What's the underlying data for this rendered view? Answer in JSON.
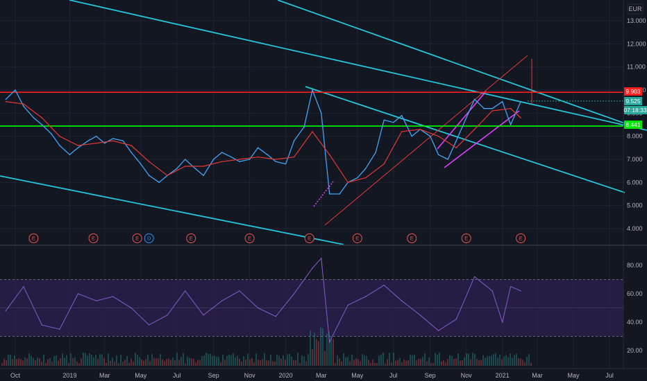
{
  "chart_data": [
    {
      "type": "line",
      "panel": "price",
      "currency": "EUR",
      "x_tick_labels": [
        "Oct",
        "2019",
        "Mar",
        "May",
        "Jul",
        "Sep",
        "Nov",
        "2020",
        "Mar",
        "May",
        "Jul",
        "Sep",
        "Nov",
        "2021",
        "Mar",
        "May",
        "Jul"
      ],
      "x_tick_dates": [
        "2018-10",
        "2019-01",
        "2019-03",
        "2019-05",
        "2019-07",
        "2019-09",
        "2019-11",
        "2020-01",
        "2020-03",
        "2020-05",
        "2020-07",
        "2020-09",
        "2020-11",
        "2021-01",
        "2021-03",
        "2021-05",
        "2021-07"
      ],
      "y_tick_labels": [
        "13.000",
        "12.000",
        "11.000",
        "10.000",
        "9.000",
        "8.000",
        "7.000",
        "6.000",
        "5.000",
        "4.000"
      ],
      "ylim": [
        3.4,
        13.6
      ],
      "grid": true,
      "series": [
        {
          "color": "#42a5f5",
          "x": [
            "2018-09-15",
            "2018-10-01",
            "2018-10-15",
            "2018-11-01",
            "2018-11-15",
            "2018-12-01",
            "2018-12-15",
            "2019-01-01",
            "2019-01-15",
            "2019-02-01",
            "2019-02-15",
            "2019-03-01",
            "2019-03-15",
            "2019-04-01",
            "2019-04-15",
            "2019-05-01",
            "2019-05-15",
            "2019-06-01",
            "2019-06-15",
            "2019-07-01",
            "2019-07-15",
            "2019-08-01",
            "2019-08-15",
            "2019-09-01",
            "2019-09-15",
            "2019-10-01",
            "2019-10-15",
            "2019-11-01",
            "2019-11-15",
            "2019-12-01",
            "2019-12-15",
            "2020-01-01",
            "2020-01-15",
            "2020-02-01",
            "2020-02-15",
            "2020-03-01",
            "2020-03-15",
            "2020-04-01",
            "2020-04-15",
            "2020-05-01",
            "2020-05-15",
            "2020-06-01",
            "2020-06-15",
            "2020-07-01",
            "2020-07-15",
            "2020-08-01",
            "2020-08-15",
            "2020-09-01",
            "2020-09-15",
            "2020-10-01",
            "2020-10-15",
            "2020-11-01",
            "2020-11-15",
            "2020-12-01",
            "2020-12-15",
            "2021-01-01",
            "2021-01-15",
            "2021-02-01"
          ],
          "values": [
            9.6,
            10.0,
            9.3,
            8.8,
            8.5,
            8.1,
            7.6,
            7.2,
            7.5,
            7.8,
            8.0,
            7.7,
            7.9,
            7.8,
            7.3,
            6.8,
            6.3,
            6.0,
            6.3,
            6.6,
            7.0,
            6.6,
            6.3,
            7.0,
            7.3,
            7.1,
            6.9,
            7.0,
            7.5,
            7.2,
            6.9,
            6.8,
            7.8,
            8.4,
            10.0,
            9.0,
            5.5,
            5.5,
            6.0,
            6.2,
            6.6,
            7.3,
            8.7,
            8.6,
            8.9,
            8.0,
            8.3,
            8.0,
            7.2,
            7.0,
            7.8,
            8.8,
            9.6,
            9.2,
            9.2,
            9.5,
            8.5,
            9.5
          ]
        },
        {
          "color": "#e53935",
          "x": [
            "2018-09-15",
            "2018-10-15",
            "2018-11-15",
            "2018-12-15",
            "2019-01-15",
            "2019-02-15",
            "2019-03-15",
            "2019-04-15",
            "2019-05-15",
            "2019-06-15",
            "2019-07-15",
            "2019-08-15",
            "2019-09-15",
            "2019-10-15",
            "2019-11-15",
            "2019-12-15",
            "2020-01-15",
            "2020-02-15",
            "2020-03-15",
            "2020-04-15",
            "2020-05-15",
            "2020-06-15",
            "2020-07-15",
            "2020-08-15",
            "2020-09-15",
            "2020-10-15",
            "2020-11-15",
            "2020-12-15",
            "2021-01-15",
            "2021-02-01"
          ],
          "values": [
            9.5,
            9.4,
            8.8,
            8.0,
            7.6,
            7.7,
            7.8,
            7.6,
            6.9,
            6.3,
            6.7,
            6.7,
            6.9,
            7.0,
            7.1,
            7.0,
            7.1,
            8.2,
            7.2,
            6.0,
            6.2,
            6.8,
            8.2,
            8.3,
            8.0,
            7.5,
            8.3,
            9.1,
            9.2,
            8.8
          ]
        }
      ]
    },
    {
      "type": "line",
      "panel": "indicator",
      "y_tick_labels": [
        "80.00",
        "60.00",
        "40.00",
        "20.00"
      ],
      "ylim": [
        10,
        90
      ],
      "band": [
        30,
        70
      ],
      "series": [
        {
          "color": "#7e57c2",
          "x": [
            "2018-09-15",
            "2018-10-15",
            "2018-11-15",
            "2018-12-15",
            "2019-01-15",
            "2019-02-15",
            "2019-03-15",
            "2019-04-15",
            "2019-05-15",
            "2019-06-15",
            "2019-07-15",
            "2019-08-15",
            "2019-09-15",
            "2019-10-15",
            "2019-11-15",
            "2019-12-15",
            "2020-01-15",
            "2020-02-15",
            "2020-03-01",
            "2020-03-15",
            "2020-04-15",
            "2020-05-15",
            "2020-06-15",
            "2020-07-15",
            "2020-08-15",
            "2020-09-15",
            "2020-10-15",
            "2020-11-15",
            "2020-12-15",
            "2021-01-01",
            "2021-01-15",
            "2021-02-01"
          ],
          "values": [
            48,
            65,
            38,
            35,
            60,
            55,
            58,
            50,
            38,
            45,
            62,
            45,
            55,
            62,
            50,
            44,
            60,
            78,
            85,
            26,
            52,
            58,
            66,
            55,
            45,
            34,
            42,
            72,
            62,
            40,
            65,
            62
          ]
        }
      ]
    }
  ],
  "header": {
    "currency_label": "EUR"
  },
  "price_badges": {
    "resistance": "9.903",
    "last_price": "9.525",
    "countdown": "07:18:33",
    "support": "8.441"
  },
  "levels": {
    "resistance_value": 9.903,
    "support_value": 8.441,
    "last_value": 9.525
  },
  "earnings_markers": [
    {
      "label": "E",
      "date": "2018-11-01"
    },
    {
      "label": "E",
      "date": "2019-02-10"
    },
    {
      "label": "E",
      "date": "2019-04-25"
    },
    {
      "label": "D",
      "date": "2019-05-15"
    },
    {
      "label": "E",
      "date": "2019-07-25"
    },
    {
      "label": "E",
      "date": "2019-11-01"
    },
    {
      "label": "E",
      "date": "2020-02-10"
    },
    {
      "label": "E",
      "date": "2020-05-01"
    },
    {
      "label": "E",
      "date": "2020-08-01"
    },
    {
      "label": "E",
      "date": "2020-11-01"
    },
    {
      "label": "E",
      "date": "2021-02-01"
    }
  ],
  "colors": {
    "background": "#131722",
    "grid": "#1f2433",
    "price_line": "#42a5f5",
    "moving_average": "#e53935",
    "resistance": "#ff1e1e",
    "support": "#00ff00",
    "trendline": "#26c6da",
    "channel": "#e040fb",
    "indicator_line": "#7e57c2",
    "indicator_band": "#2a1f4a",
    "last_price_badge": "#26a69a",
    "earnings": "#ef5350",
    "dividend": "#2196f3"
  }
}
